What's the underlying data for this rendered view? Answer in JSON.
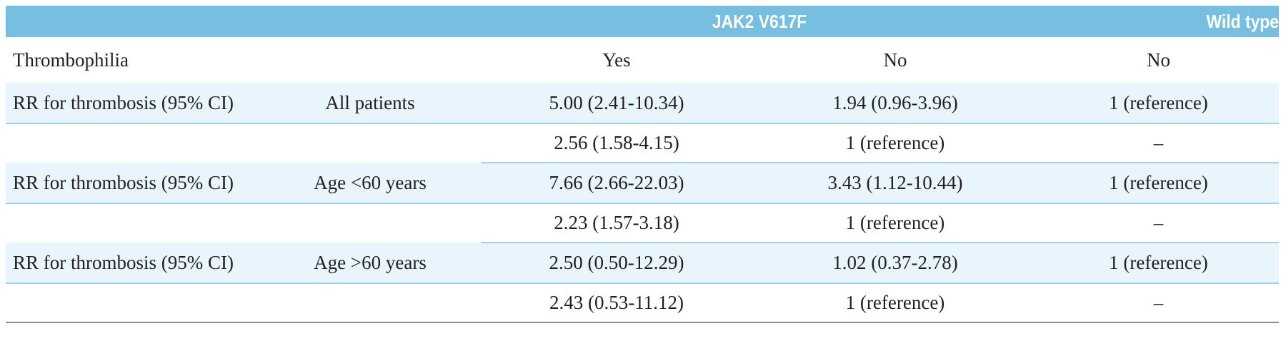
{
  "header": {
    "group1": "JAK2 V617F",
    "group2": "Wild type"
  },
  "subheader": {
    "label": "Thrombophilia",
    "col_yes": "Yes",
    "col_no": "No",
    "col_wt": "No"
  },
  "rows": [
    {
      "label": "RR for thrombosis (95% CI)",
      "group": "All patients",
      "yes": "5.00 (2.41-10.34)",
      "no": "1.94 (0.96-3.96)",
      "wt": "1 (reference)"
    },
    {
      "label": "",
      "group": "",
      "yes": "2.56 (1.58-4.15)",
      "no": "1 (reference)",
      "wt": "–"
    },
    {
      "label": "RR for thrombosis (95% CI)",
      "group": "Age <60 years",
      "yes": "7.66 (2.66-22.03)",
      "no": "3.43 (1.12-10.44)",
      "wt": "1 (reference)"
    },
    {
      "label": "",
      "group": "",
      "yes": "2.23 (1.57-3.18)",
      "no": "1 (reference)",
      "wt": "–"
    },
    {
      "label": "RR for thrombosis (95% CI)",
      "group": "Age >60 years",
      "yes": "2.50 (0.50-12.29)",
      "no": "1.02 (0.37-2.78)",
      "wt": "1 (reference)"
    },
    {
      "label": "",
      "group": "",
      "yes": "2.43 (0.53-11.12)",
      "no": "1 (reference)",
      "wt": "–"
    }
  ],
  "colors": {
    "header_bg": "#76bfe0",
    "row_tint": "#e8f5fc",
    "rule": "#9fd3ea"
  }
}
